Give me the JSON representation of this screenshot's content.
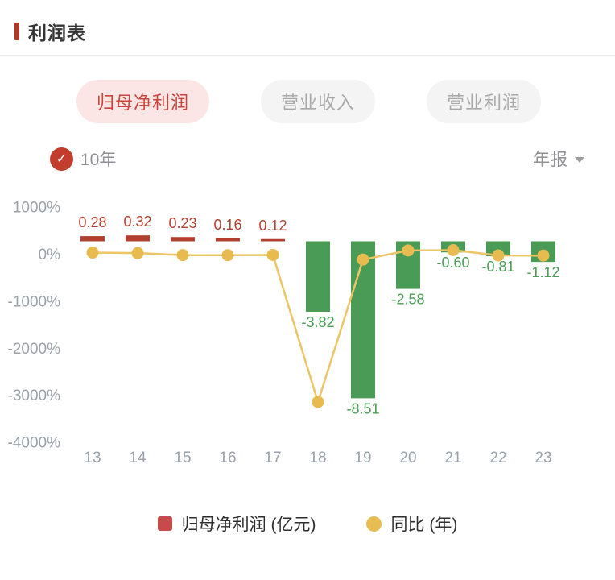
{
  "page": {
    "title": "利润表"
  },
  "tabs": [
    {
      "label": "归母净利润",
      "selected": true
    },
    {
      "label": "营业收入",
      "selected": false
    },
    {
      "label": "营业利润",
      "selected": false
    }
  ],
  "controls": {
    "range_label": "10年",
    "check_icon": "checkmark",
    "period_label": "年报"
  },
  "chart_data": {
    "type": "bar+line",
    "title": "归母净利润 10年 年报",
    "categories": [
      "13",
      "14",
      "15",
      "16",
      "17",
      "18",
      "19",
      "20",
      "21",
      "22",
      "23"
    ],
    "series": [
      {
        "name": "归母净利润 (亿元)",
        "type": "bar",
        "values": [
          0.28,
          0.32,
          0.23,
          0.16,
          0.12,
          -3.82,
          -8.51,
          -2.58,
          -0.6,
          -0.81,
          -1.12
        ],
        "labels": [
          "0.28",
          "0.32",
          "0.23",
          "0.16",
          "0.12",
          "-3.82",
          "-8.51",
          "-2.58",
          "-0.60",
          "-0.81",
          "-1.12"
        ],
        "positive_color": "#b2402f",
        "negative_color": "#4a9b55"
      },
      {
        "name": "同比 (年)",
        "type": "line",
        "unit": "%",
        "values": [
          25,
          14,
          -28,
          -30,
          -25,
          -3150,
          -123,
          70,
          77,
          -35,
          -38
        ],
        "color": "#ecc566",
        "marker_color": "#e8bb50"
      }
    ],
    "y_axis": {
      "unit": "%",
      "range": [
        -4000,
        1000
      ],
      "grid": false,
      "ticks": [
        {
          "value": 1000,
          "label": "1000%"
        },
        {
          "value": 0,
          "label": "0%"
        },
        {
          "value": -1000,
          "label": "-1000%"
        },
        {
          "value": -2000,
          "label": "-2000%"
        },
        {
          "value": -3000,
          "label": "-3000%"
        },
        {
          "value": -4000,
          "label": "-4000%"
        }
      ],
      "tick_color": "#9aa1a9"
    },
    "x_axis": {
      "tick_color": "#9aa1a9"
    },
    "legend": {
      "position": "bottom",
      "entries": [
        {
          "label": "归母净利润 (亿元)",
          "swatch": "square",
          "color": "#c84b4b"
        },
        {
          "label": "同比 (年)",
          "swatch": "circle",
          "color": "#e7bd53"
        }
      ]
    }
  }
}
